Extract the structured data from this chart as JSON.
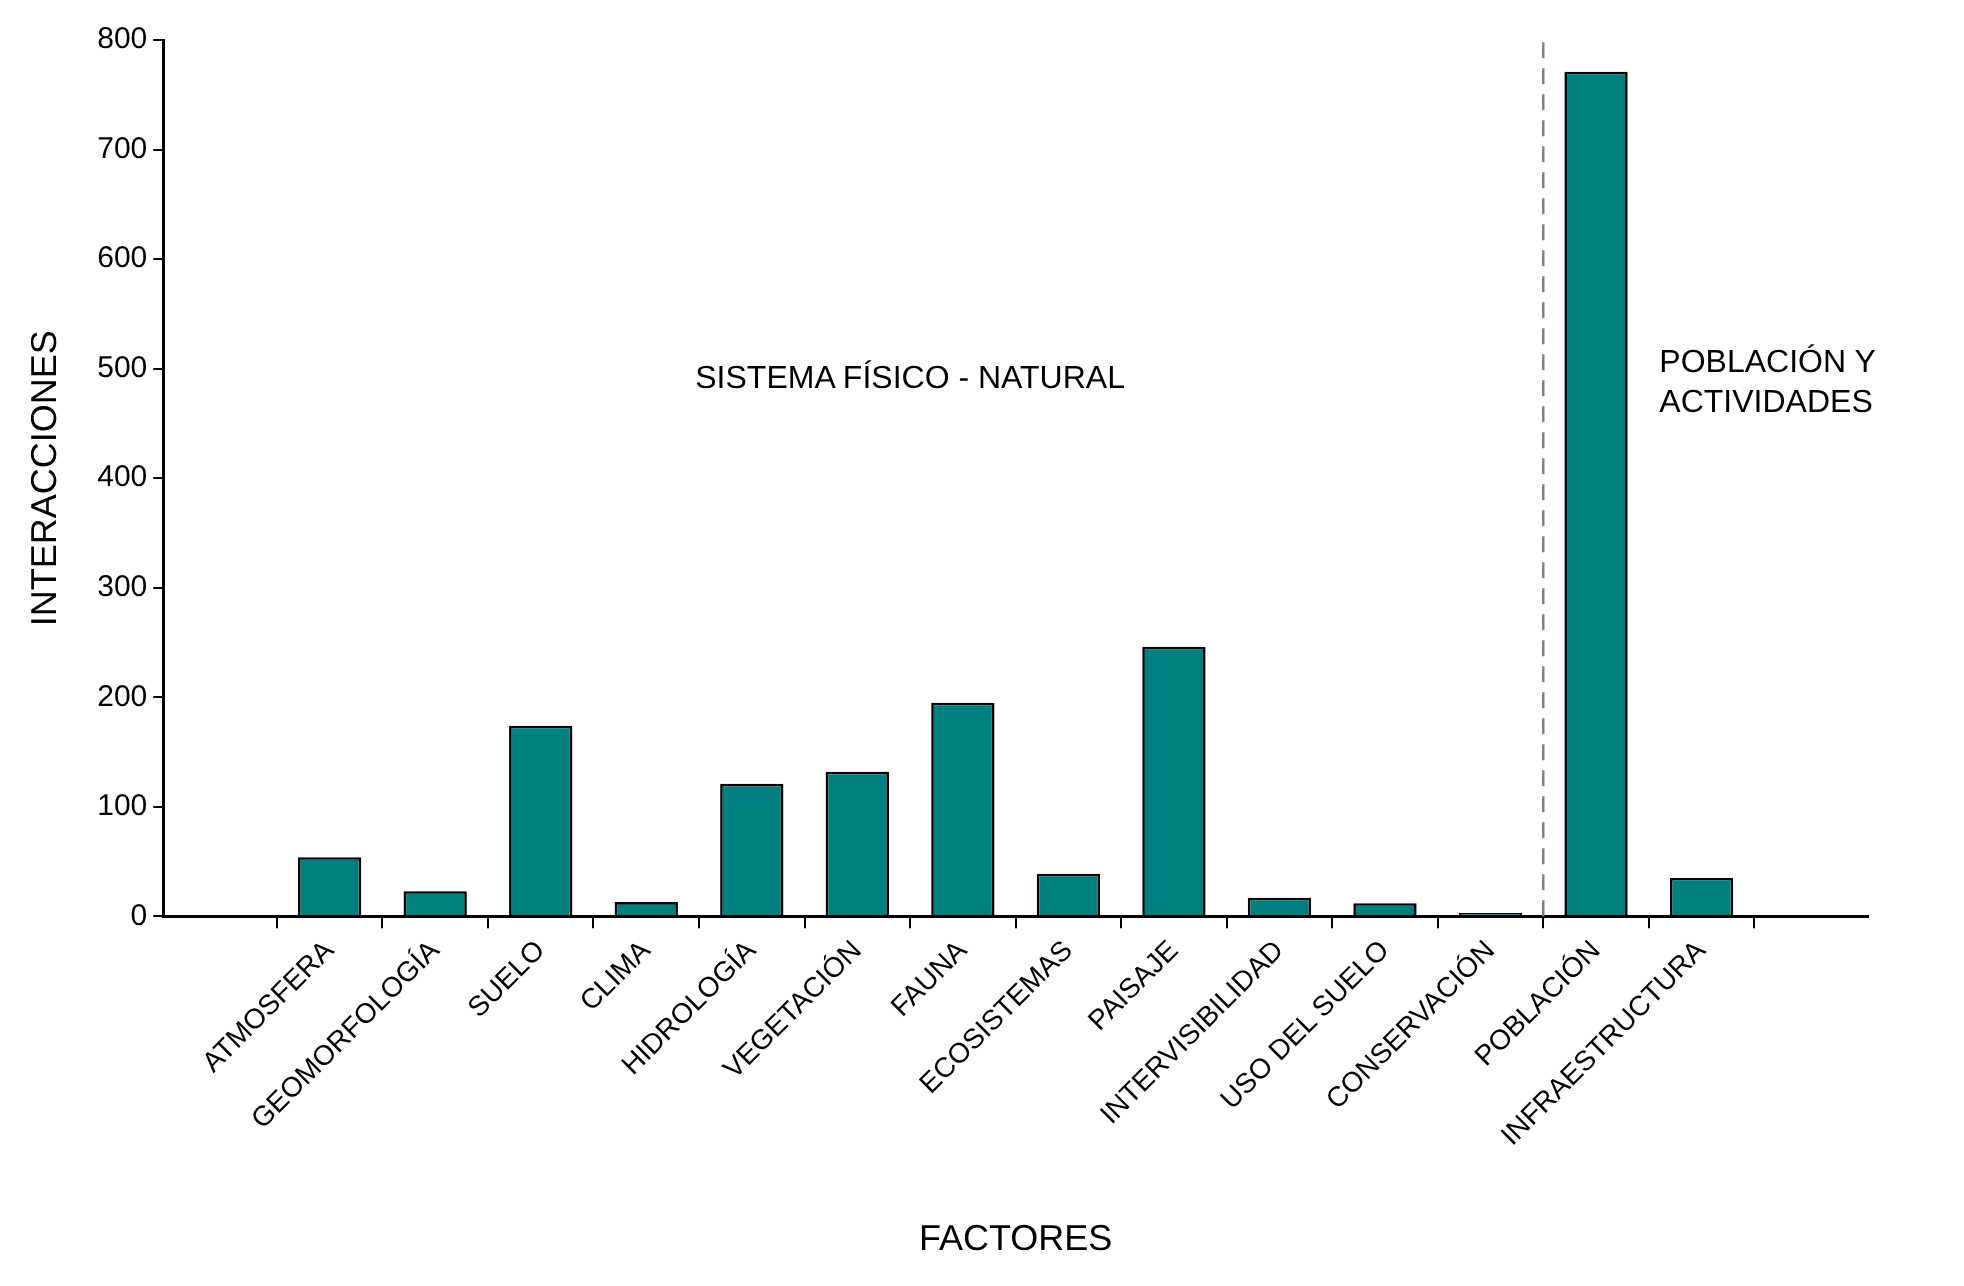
{
  "chart_data": {
    "type": "bar",
    "xlabel": "FACTORES",
    "ylabel": "INTERACCIONES",
    "categories": [
      "ATMOSFERA",
      "GEOMORFOLOGÍA",
      "SUELO",
      "CLIMA",
      "HIDROLOGÍA",
      "VEGETACIÓN",
      "FAUNA",
      "ECOSISTEMAS",
      "PAISAJE",
      "INTERVISIBILIDAD",
      "USO DEL SUELO",
      "CONSERVACIÓN",
      "POBLACIÓN",
      "INFRAESTRUCTURA"
    ],
    "values": [
      54,
      23,
      174,
      13,
      121,
      132,
      195,
      39,
      246,
      17,
      12,
      3,
      771,
      35
    ],
    "color": "#008080",
    "ylim": [
      0,
      800
    ],
    "yticks": [
      0,
      100,
      200,
      300,
      400,
      500,
      600,
      700,
      800
    ],
    "annotations": [
      "SISTEMA FÍSICO - NATURAL",
      "POBLACIÓN Y\nACTIVIDADES"
    ],
    "grid": false,
    "legend": false
  }
}
